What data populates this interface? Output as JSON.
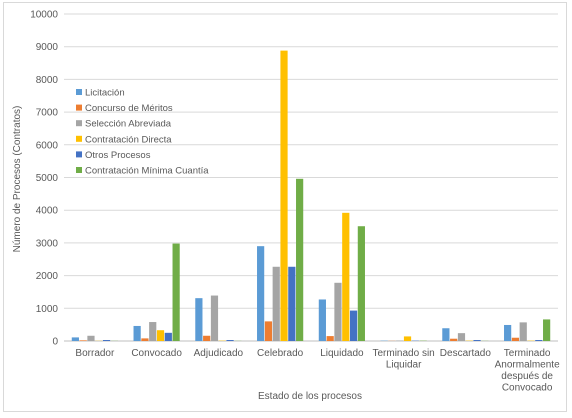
{
  "chart_data": {
    "type": "bar",
    "title": "",
    "xlabel": "Estado de los procesos",
    "ylabel": "Número de Procesos (Contratos)",
    "ylim": [
      0,
      10000
    ],
    "yticks": [
      0,
      1000,
      2000,
      3000,
      4000,
      5000,
      6000,
      7000,
      8000,
      9000,
      10000
    ],
    "grid": true,
    "legend_position": "left",
    "categories": [
      [
        "Borrador"
      ],
      [
        "Convocado"
      ],
      [
        "Adjudicado"
      ],
      [
        "Celebrado"
      ],
      [
        "Liquidado"
      ],
      [
        "Terminado sin",
        "Liquidar"
      ],
      [
        "Descartado"
      ],
      [
        "Terminado",
        "Anormalmente",
        "después de",
        "Convocado"
      ]
    ],
    "series": [
      {
        "name": "Licitación",
        "color": "#5b9bd5",
        "values": [
          110,
          460,
          1310,
          2900,
          1270,
          10,
          390,
          490
        ]
      },
      {
        "name": "Concurso de Méritos",
        "color": "#ed7d31",
        "values": [
          20,
          80,
          160,
          600,
          150,
          5,
          70,
          100
        ]
      },
      {
        "name": "Selección Abreviada",
        "color": "#a5a5a5",
        "values": [
          160,
          580,
          1390,
          2270,
          1780,
          15,
          240,
          570
        ]
      },
      {
        "name": "Contratación Directa",
        "color": "#ffc000",
        "values": [
          5,
          330,
          10,
          8880,
          3920,
          140,
          10,
          10
        ]
      },
      {
        "name": "Otros Procesos",
        "color": "#4472c4",
        "values": [
          30,
          250,
          30,
          2270,
          930,
          10,
          30,
          30
        ]
      },
      {
        "name": "Contratación Mínima Cuantía",
        "color": "#70ad47",
        "values": [
          5,
          2980,
          5,
          4960,
          3510,
          10,
          5,
          660
        ]
      }
    ]
  }
}
